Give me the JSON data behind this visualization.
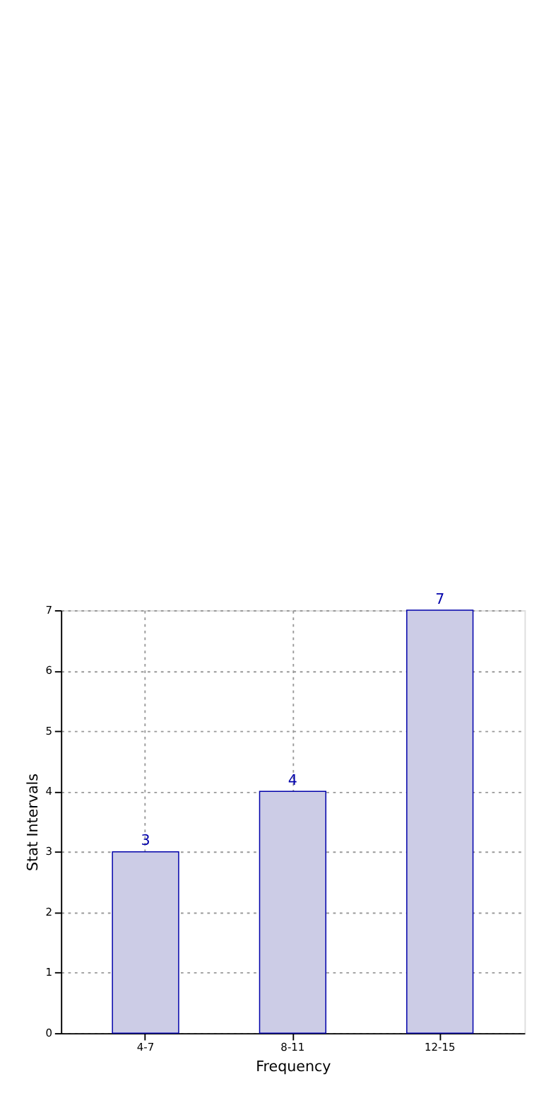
{
  "chart_data": {
    "type": "bar",
    "xlabel": "Frequency",
    "ylabel": "Stat Intervals",
    "categories": [
      "4-7",
      "8-11",
      "12-15"
    ],
    "values": [
      3,
      4,
      7
    ],
    "color": "#cccce6",
    "ylim": [
      0,
      7
    ],
    "yticks": [
      0,
      1,
      2,
      3,
      4,
      5,
      6,
      7
    ],
    "grid": true,
    "data_labels": true
  }
}
